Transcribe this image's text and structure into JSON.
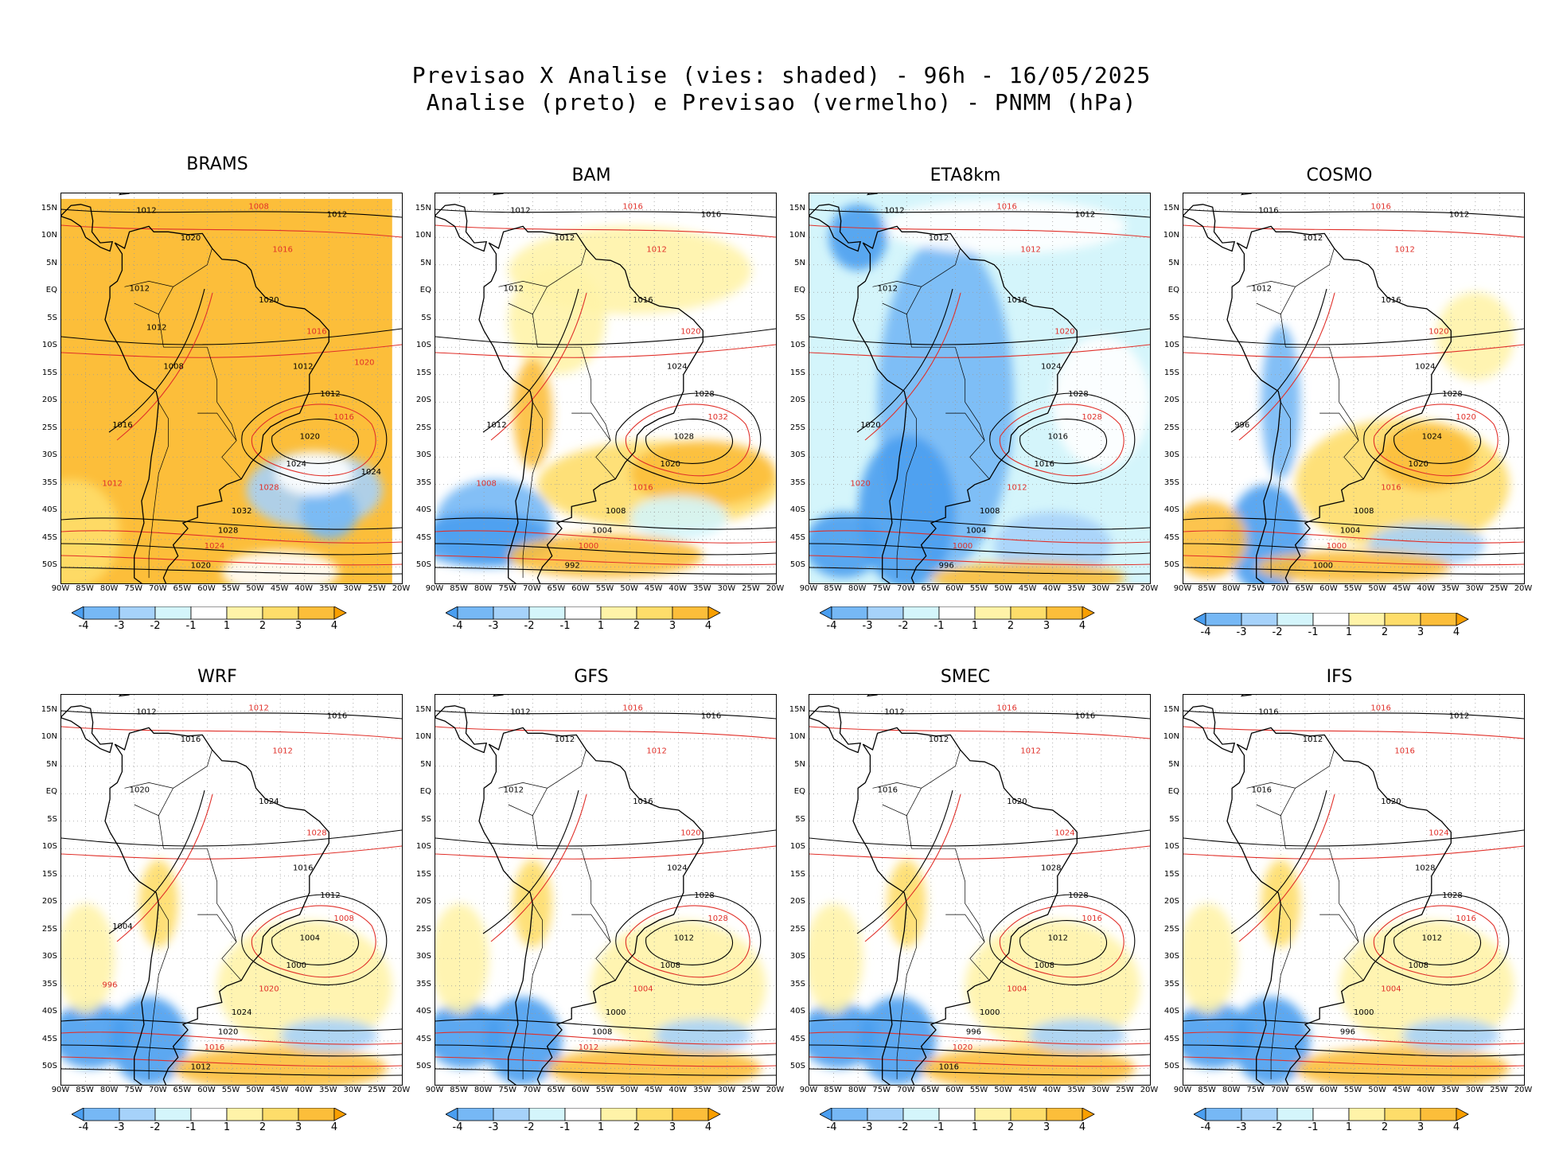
{
  "header": {
    "line1": "Previsao X Analise (vies: shaded) - 96h - 16/05/2025",
    "line2": "Analise (preto) e Previsao (vermelho) - PNMM (hPa)"
  },
  "axes": {
    "lat_labels": [
      "15N",
      "10N",
      "5N",
      "EQ",
      "5S",
      "10S",
      "15S",
      "20S",
      "25S",
      "30S",
      "35S",
      "40S",
      "45S",
      "50S"
    ],
    "lon_labels": [
      "90W",
      "85W",
      "80W",
      "75W",
      "70W",
      "65W",
      "60W",
      "55W",
      "50W",
      "45W",
      "40W",
      "35W",
      "30W",
      "25W",
      "20W"
    ]
  },
  "colorbar": {
    "ticks": [
      "-4",
      "-3",
      "-2",
      "-1",
      "1",
      "2",
      "3",
      "4"
    ],
    "colors": [
      "#4a9ef0",
      "#76b8f5",
      "#a6d2fa",
      "#d4f5fb",
      "#ffffff",
      "#fff3a8",
      "#fedd6a",
      "#fcbe3a",
      "#f99f00"
    ]
  },
  "legend_colors": {
    "analysis": "#000000",
    "forecast": "#e0302a"
  },
  "panels": [
    {
      "name": "BRAMS",
      "bias": "warm-full",
      "labels": [
        "1012",
        "1008",
        "1012",
        "1020",
        "1016",
        "1012",
        "1020",
        "1016",
        "1012",
        "1012",
        "1016",
        "1020",
        "1024",
        "1028",
        "1032",
        "1028",
        "1024",
        "1020",
        "1016",
        "1012",
        "1008",
        "1012",
        "1020",
        "1024"
      ]
    },
    {
      "name": "BAM",
      "bias": "mixed",
      "labels": [
        "1012",
        "1016",
        "1016",
        "1012",
        "1012",
        "1012",
        "1016",
        "1020",
        "1024",
        "1028",
        "1032",
        "1028",
        "1020",
        "1016",
        "1008",
        "1004",
        "1000",
        "992",
        "1012",
        "1008"
      ]
    },
    {
      "name": "ETA8km",
      "bias": "cold",
      "labels": [
        "1012",
        "1016",
        "1012",
        "1012",
        "1012",
        "1012",
        "1016",
        "1020",
        "1024",
        "1028",
        "1028",
        "1016",
        "1016",
        "1012",
        "1008",
        "1004",
        "1000",
        "996",
        "1020",
        "1020"
      ]
    },
    {
      "name": "COSMO",
      "bias": "mixed-warm",
      "labels": [
        "1016",
        "1016",
        "1012",
        "1012",
        "1012",
        "1012",
        "1016",
        "1020",
        "1024",
        "1028",
        "1020",
        "1024",
        "1020",
        "1016",
        "1008",
        "1004",
        "1000",
        "1000",
        "996"
      ]
    },
    {
      "name": "WRF",
      "bias": "near-zero",
      "labels": [
        "1012",
        "1012",
        "1016",
        "1016",
        "1012",
        "1020",
        "1024",
        "1028",
        "1016",
        "1012",
        "1008",
        "1004",
        "1000",
        "1020",
        "1024",
        "1020",
        "1016",
        "1012",
        "1004",
        "996"
      ]
    },
    {
      "name": "GFS",
      "bias": "near-zero",
      "labels": [
        "1012",
        "1016",
        "1016",
        "1012",
        "1012",
        "1012",
        "1016",
        "1020",
        "1024",
        "1028",
        "1028",
        "1012",
        "1008",
        "1004",
        "1000",
        "1008",
        "1012"
      ]
    },
    {
      "name": "SMEC",
      "bias": "near-zero",
      "labels": [
        "1012",
        "1016",
        "1016",
        "1012",
        "1012",
        "1016",
        "1020",
        "1024",
        "1028",
        "1028",
        "1016",
        "1012",
        "1008",
        "1004",
        "1000",
        "996",
        "1020",
        "1016"
      ]
    },
    {
      "name": "IFS",
      "bias": "near-zero",
      "labels": [
        "1016",
        "1016",
        "1012",
        "1012",
        "1016",
        "1016",
        "1020",
        "1024",
        "1028",
        "1028",
        "1016",
        "1012",
        "1008",
        "1004",
        "1000",
        "996"
      ]
    }
  ]
}
